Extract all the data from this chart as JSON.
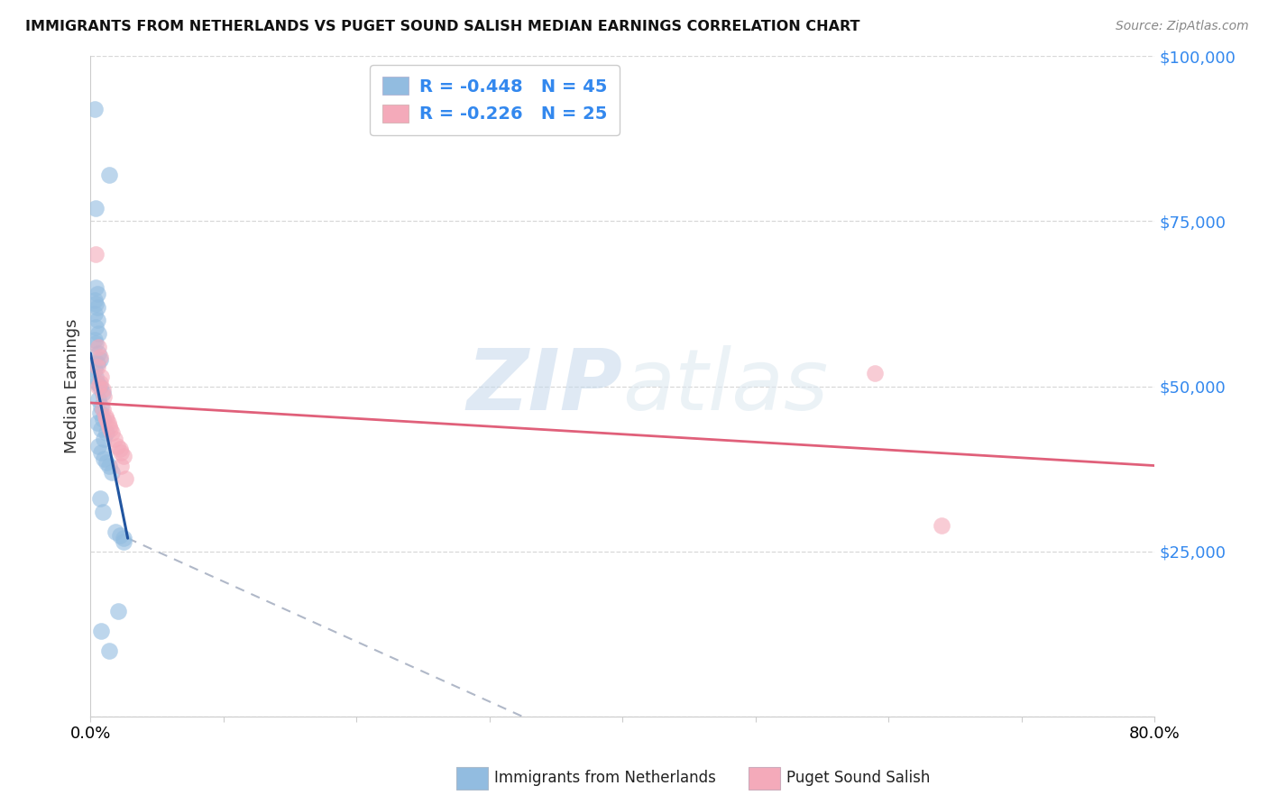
{
  "title": "IMMIGRANTS FROM NETHERLANDS VS PUGET SOUND SALISH MEDIAN EARNINGS CORRELATION CHART",
  "source": "Source: ZipAtlas.com",
  "ylabel": "Median Earnings",
  "xmin": 0.0,
  "xmax": 0.8,
  "ymin": 0,
  "ymax": 100000,
  "yticks": [
    0,
    25000,
    50000,
    75000,
    100000
  ],
  "ytick_labels": [
    "",
    "$25,000",
    "$50,000",
    "$75,000",
    "$100,000"
  ],
  "xticks": [
    0.0,
    0.1,
    0.2,
    0.3,
    0.4,
    0.5,
    0.6,
    0.7,
    0.8
  ],
  "legend1_r": "R = -0.448",
  "legend1_n": "N = 45",
  "legend2_r": "R = -0.226",
  "legend2_n": "N = 25",
  "blue_color": "#92bce0",
  "pink_color": "#f4aaba",
  "blue_line_color": "#2155a0",
  "pink_line_color": "#e0607a",
  "watermark_zip": "ZIP",
  "watermark_atlas": "atlas",
  "blue_dots": [
    [
      0.003,
      92000
    ],
    [
      0.014,
      82000
    ],
    [
      0.004,
      77000
    ],
    [
      0.004,
      65000
    ],
    [
      0.005,
      64000
    ],
    [
      0.003,
      63000
    ],
    [
      0.004,
      62500
    ],
    [
      0.005,
      62000
    ],
    [
      0.003,
      61000
    ],
    [
      0.005,
      60000
    ],
    [
      0.004,
      59000
    ],
    [
      0.006,
      58000
    ],
    [
      0.003,
      57000
    ],
    [
      0.004,
      56500
    ],
    [
      0.006,
      55000
    ],
    [
      0.007,
      54000
    ],
    [
      0.005,
      53500
    ],
    [
      0.003,
      52500
    ],
    [
      0.004,
      51500
    ],
    [
      0.005,
      50500
    ],
    [
      0.007,
      50000
    ],
    [
      0.009,
      49000
    ],
    [
      0.006,
      48000
    ],
    [
      0.008,
      47000
    ],
    [
      0.007,
      46000
    ],
    [
      0.009,
      45000
    ],
    [
      0.005,
      44500
    ],
    [
      0.008,
      43500
    ],
    [
      0.012,
      43000
    ],
    [
      0.01,
      42000
    ],
    [
      0.006,
      41000
    ],
    [
      0.008,
      40000
    ],
    [
      0.01,
      39000
    ],
    [
      0.012,
      38500
    ],
    [
      0.014,
      38000
    ],
    [
      0.016,
      37000
    ],
    [
      0.007,
      33000
    ],
    [
      0.009,
      31000
    ],
    [
      0.019,
      28000
    ],
    [
      0.022,
      27500
    ],
    [
      0.025,
      27000
    ],
    [
      0.025,
      26500
    ],
    [
      0.021,
      16000
    ],
    [
      0.008,
      13000
    ],
    [
      0.014,
      10000
    ]
  ],
  "pink_dots": [
    [
      0.004,
      70000
    ],
    [
      0.006,
      56000
    ],
    [
      0.007,
      54500
    ],
    [
      0.005,
      53000
    ],
    [
      0.008,
      51500
    ],
    [
      0.007,
      50500
    ],
    [
      0.006,
      50000
    ],
    [
      0.009,
      49500
    ],
    [
      0.01,
      48500
    ],
    [
      0.009,
      46500
    ],
    [
      0.011,
      45500
    ],
    [
      0.012,
      45000
    ],
    [
      0.013,
      44500
    ],
    [
      0.014,
      44000
    ],
    [
      0.015,
      43500
    ],
    [
      0.016,
      43000
    ],
    [
      0.018,
      42000
    ],
    [
      0.02,
      41000
    ],
    [
      0.022,
      40500
    ],
    [
      0.023,
      40000
    ],
    [
      0.025,
      39500
    ],
    [
      0.023,
      38000
    ],
    [
      0.026,
      36000
    ],
    [
      0.59,
      52000
    ],
    [
      0.64,
      29000
    ]
  ],
  "blue_line_solid": [
    [
      0.0,
      55000
    ],
    [
      0.028,
      27000
    ]
  ],
  "blue_line_dashed": [
    [
      0.028,
      27000
    ],
    [
      0.38,
      -5000
    ]
  ],
  "pink_line": [
    [
      0.0,
      47500
    ],
    [
      0.8,
      38000
    ]
  ],
  "bottom_legend_blue_label": "Immigrants from Netherlands",
  "bottom_legend_pink_label": "Puget Sound Salish"
}
